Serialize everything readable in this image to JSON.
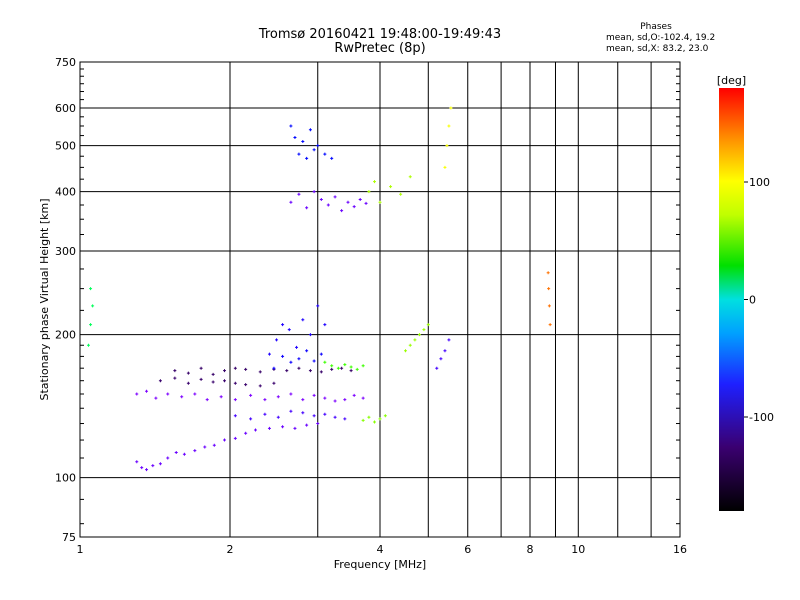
{
  "header": {
    "title": "Tromsø 20160421 19:48:00-19:49:43",
    "subtitle": "RwPretec (8p)",
    "phases_heading": "Phases",
    "phases_o": "mean, sd,O:-102.4, 19.2",
    "phases_x": "mean, sd,X:  83.2, 23.0"
  },
  "colorbar": {
    "unit_label": "[deg]",
    "range": [
      -180,
      180
    ],
    "ticks": [
      {
        "value": 100,
        "label": "100"
      },
      {
        "value": 0,
        "label": "0"
      },
      {
        "value": -100,
        "label": "-100"
      }
    ]
  },
  "chart_data": {
    "type": "scatter",
    "title": "Tromsø 20160421 19:48:00-19:49:43",
    "subtitle": "RwPretec (8p)",
    "xlabel": "Frequency [MHz]",
    "ylabel": "Stationary phase Virtual Height [km]",
    "x_scale": "log",
    "y_scale": "log",
    "xlim": [
      1,
      16
    ],
    "ylim": [
      75,
      750
    ],
    "x_ticks": [
      1,
      2,
      4,
      6,
      8,
      10,
      16
    ],
    "x_minor_ticks": [
      3,
      5,
      7,
      9,
      12,
      14
    ],
    "y_ticks": [
      75,
      100,
      200,
      300,
      400,
      500,
      600,
      750
    ],
    "grid": true,
    "color_by": "phase [deg]",
    "traces": [
      {
        "x": [
          1.3,
          1.33,
          1.36,
          1.4,
          1.45,
          1.5,
          1.56,
          1.62,
          1.7,
          1.78,
          1.86,
          1.95,
          2.05,
          2.15,
          2.25,
          2.4,
          2.55,
          2.7,
          2.85,
          3.0
        ],
        "y": [
          108,
          105,
          104,
          106,
          107,
          110,
          113,
          112,
          114,
          116,
          117,
          120,
          121,
          124,
          126,
          127,
          128,
          127,
          129,
          130
        ],
        "phase": -120
      },
      {
        "x": [
          1.3,
          1.36,
          1.42,
          1.5,
          1.6,
          1.7,
          1.8,
          1.92,
          2.05,
          2.2,
          2.35,
          2.5,
          2.65,
          2.8,
          2.95,
          3.1,
          3.25,
          3.4,
          3.55,
          3.7
        ],
        "y": [
          150,
          152,
          147,
          150,
          148,
          150,
          146,
          148,
          146,
          149,
          146,
          148,
          150,
          146,
          149,
          147,
          145,
          146,
          149,
          147
        ],
        "phase": -125
      },
      {
        "x": [
          1.55,
          1.65,
          1.75,
          1.85,
          1.95,
          2.05,
          2.15,
          2.3,
          2.45,
          2.6,
          2.75,
          2.9,
          3.05,
          3.2,
          3.35,
          3.5
        ],
        "y": [
          168,
          166,
          170,
          165,
          168,
          170,
          169,
          167,
          169,
          168,
          170,
          168,
          167,
          169,
          170,
          168
        ],
        "phase": -130
      },
      {
        "x": [
          1.45,
          1.55,
          1.65,
          1.75,
          1.85,
          1.95,
          2.05,
          2.15,
          2.3,
          2.45
        ],
        "y": [
          160,
          162,
          158,
          161,
          159,
          160,
          158,
          157,
          156,
          158
        ],
        "phase": -128
      },
      {
        "x": [
          2.05,
          2.2,
          2.35,
          2.5,
          2.65,
          2.8,
          2.95,
          3.1,
          3.25,
          3.4
        ],
        "y": [
          135,
          133,
          136,
          134,
          138,
          137,
          135,
          136,
          134,
          133
        ],
        "phase": -110
      },
      {
        "x": [
          2.4,
          2.48,
          2.55,
          2.63,
          2.72,
          2.8,
          2.9,
          3.0,
          3.1
        ],
        "y": [
          182,
          195,
          210,
          205,
          188,
          215,
          200,
          230,
          210
        ],
        "phase": -100
      },
      {
        "x": [
          2.45,
          2.55,
          2.65,
          2.75,
          2.85,
          2.95,
          3.05
        ],
        "y": [
          170,
          180,
          175,
          178,
          185,
          176,
          182
        ],
        "phase": -95
      },
      {
        "x": [
          3.1,
          3.2,
          3.3,
          3.4,
          3.5,
          3.6,
          3.7
        ],
        "y": [
          175,
          172,
          170,
          173,
          171,
          169,
          172
        ],
        "phase": 60
      },
      {
        "x": [
          3.7,
          3.8,
          3.9,
          4.0,
          4.1
        ],
        "y": [
          132,
          134,
          131,
          133,
          135
        ],
        "phase": 80
      },
      {
        "x": [
          2.65,
          2.7,
          2.75,
          2.8,
          2.85,
          2.9,
          2.95,
          3.0,
          3.1,
          3.2
        ],
        "y": [
          550,
          520,
          480,
          510,
          470,
          540,
          490,
          500,
          480,
          470
        ],
        "phase": -90
      },
      {
        "x": [
          2.65,
          2.75,
          2.85,
          2.95,
          3.05,
          3.15,
          3.25,
          3.35,
          3.45,
          3.55,
          3.65,
          3.75
        ],
        "y": [
          380,
          395,
          370,
          400,
          385,
          375,
          390,
          365,
          380,
          372,
          385,
          378
        ],
        "phase": -120
      },
      {
        "x": [
          3.8,
          3.9,
          4.0,
          4.2,
          4.4,
          4.6
        ],
        "y": [
          400,
          420,
          380,
          410,
          395,
          430
        ],
        "phase": 90
      },
      {
        "x": [
          4.5,
          4.6,
          4.7,
          4.8,
          4.9,
          5.0
        ],
        "y": [
          185,
          190,
          195,
          200,
          205,
          210
        ],
        "phase": 85
      },
      {
        "x": [
          5.2,
          5.3,
          5.4,
          5.5
        ],
        "y": [
          170,
          178,
          185,
          195
        ],
        "phase": -110
      },
      {
        "x": [
          5.4,
          5.45,
          5.5,
          5.55
        ],
        "y": [
          450,
          500,
          550,
          600
        ],
        "phase": 110
      },
      {
        "x": [
          8.7,
          8.72,
          8.75,
          8.78
        ],
        "y": [
          270,
          250,
          230,
          210
        ],
        "phase": 150
      },
      {
        "x": [
          1.05,
          1.06,
          1.05,
          1.04
        ],
        "y": [
          250,
          230,
          210,
          190
        ],
        "phase": 20
      }
    ]
  }
}
